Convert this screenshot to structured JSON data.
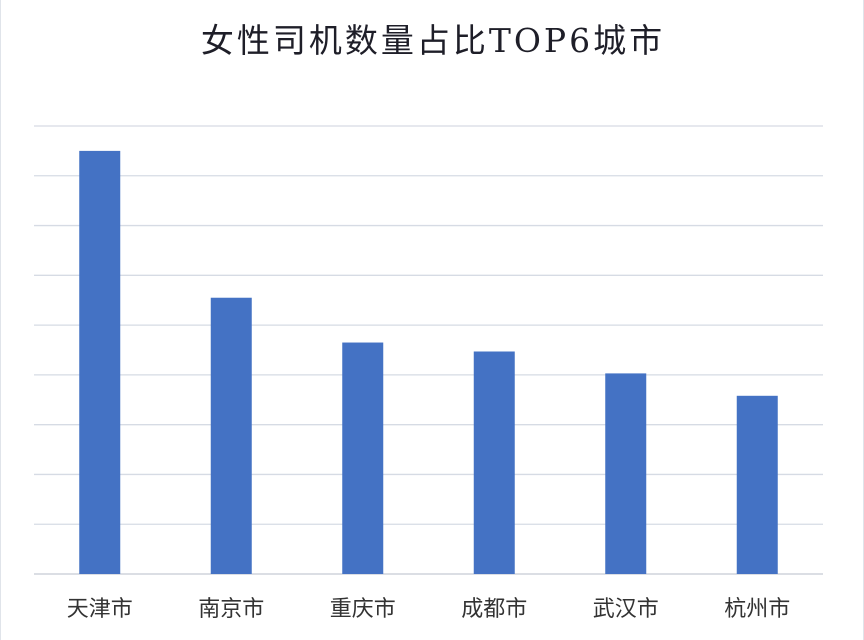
{
  "chart_data": {
    "type": "bar",
    "title": "女性司机数量占比TOP6城市",
    "categories": [
      "天津市",
      "南京市",
      "重庆市",
      "成都市",
      "武汉市",
      "杭州市"
    ],
    "values": [
      8.5,
      5.55,
      4.65,
      4.47,
      4.03,
      3.58
    ],
    "ylim": [
      0,
      9
    ],
    "grid": true,
    "y_tick_labels_visible": false,
    "xlabel": "",
    "ylabel": "",
    "bar_color": "#4472c4",
    "grid_color": "#d6dbe4"
  }
}
